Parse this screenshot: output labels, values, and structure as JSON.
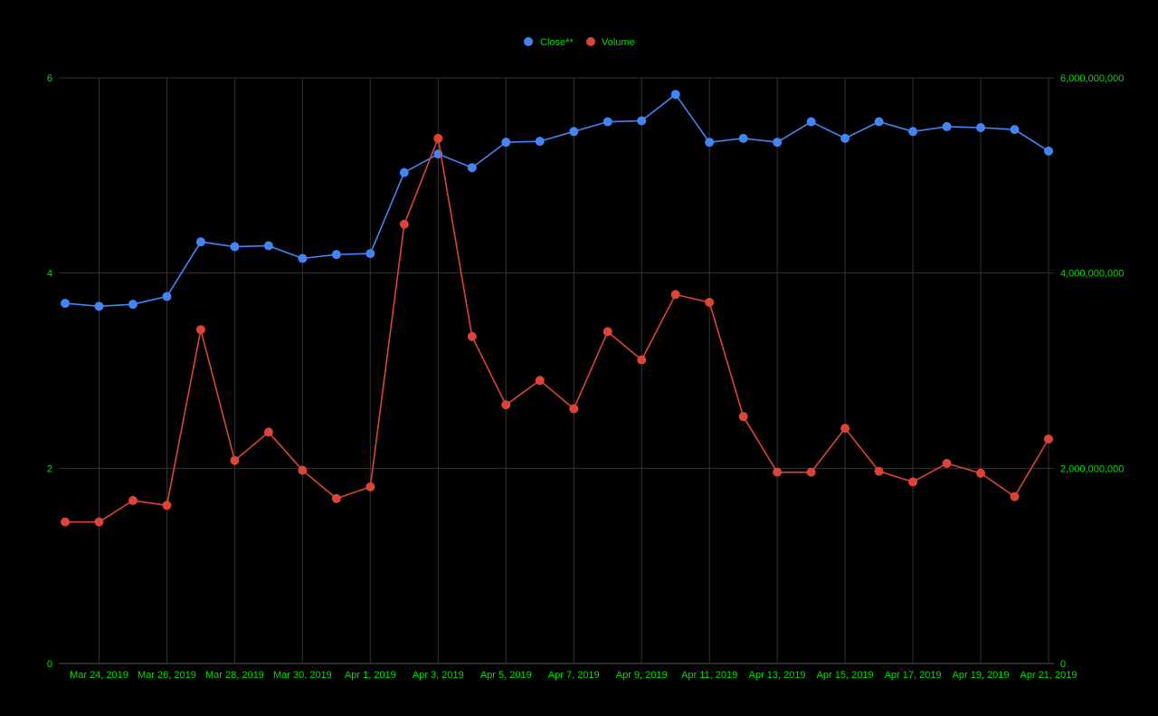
{
  "chart_data": {
    "type": "line",
    "title": "",
    "xlabel": "",
    "ylabel": "",
    "x": [
      "Mar 23, 2019",
      "Mar 24, 2019",
      "Mar 25, 2019",
      "Mar 26, 2019",
      "Mar 27, 2019",
      "Mar 28, 2019",
      "Mar 29, 2019",
      "Mar 30, 2019",
      "Mar 31, 2019",
      "Apr 1, 2019",
      "Apr 2, 2019",
      "Apr 3, 2019",
      "Apr 4, 2019",
      "Apr 5, 2019",
      "Apr 6, 2019",
      "Apr 7, 2019",
      "Apr 8, 2019",
      "Apr 9, 2019",
      "Apr 10, 2019",
      "Apr 11, 2019",
      "Apr 12, 2019",
      "Apr 13, 2019",
      "Apr 14, 2019",
      "Apr 15, 2019",
      "Apr 16, 2019",
      "Apr 17, 2019",
      "Apr 18, 2019",
      "Apr 19, 2019",
      "Apr 20, 2019",
      "Apr 21, 2019"
    ],
    "x_tick_labels": [
      "Mar 24, 2019",
      "Mar 26, 2019",
      "Mar 28, 2019",
      "Mar 30, 2019",
      "Apr 1, 2019",
      "Apr 3, 2019",
      "Apr 5, 2019",
      "Apr 7, 2019",
      "Apr 9, 2019",
      "Apr 11, 2019",
      "Apr 13, 2019",
      "Apr 15, 2019",
      "Apr 17, 2019",
      "Apr 19, 2019",
      "Apr 21, 2019"
    ],
    "series": [
      {
        "name": "Close**",
        "axis": "left",
        "color": "#4285f4",
        "values": [
          3.69,
          3.66,
          3.68,
          3.76,
          4.32,
          4.27,
          4.28,
          4.15,
          4.19,
          4.2,
          5.03,
          5.22,
          5.08,
          5.34,
          5.35,
          5.45,
          5.55,
          5.56,
          5.83,
          5.34,
          5.38,
          5.34,
          5.55,
          5.38,
          5.55,
          5.45,
          5.5,
          5.49,
          5.47,
          5.25
        ]
      },
      {
        "name": "Volume",
        "axis": "right",
        "color": "#db4437",
        "values": [
          1450000000,
          1450000000,
          1670000000,
          1620000000,
          3420000000,
          2080000000,
          2370000000,
          1980000000,
          1690000000,
          1810000000,
          4500000000,
          5380000000,
          3350000000,
          2650000000,
          2900000000,
          2610000000,
          3400000000,
          3110000000,
          3780000000,
          3700000000,
          2530000000,
          1960000000,
          1960000000,
          2410000000,
          1970000000,
          1860000000,
          2050000000,
          1950000000,
          1710000000,
          2300000000
        ]
      }
    ],
    "y_left": {
      "ylim": [
        0,
        6
      ],
      "ticks": [
        0,
        2,
        4,
        6
      ],
      "tick_labels": [
        "0",
        "2",
        "4",
        "6"
      ]
    },
    "y_right": {
      "ylim": [
        0,
        6000000000
      ],
      "ticks": [
        0,
        2000000000,
        4000000000,
        6000000000
      ],
      "tick_labels": [
        "0",
        "2,000,000,000",
        "4,000,000,000",
        "6,000,000,000"
      ]
    },
    "grid": true,
    "legend": "top-center",
    "colors": {
      "background": "#000000",
      "grid": "#333333",
      "tick_text": "#00e000"
    }
  }
}
